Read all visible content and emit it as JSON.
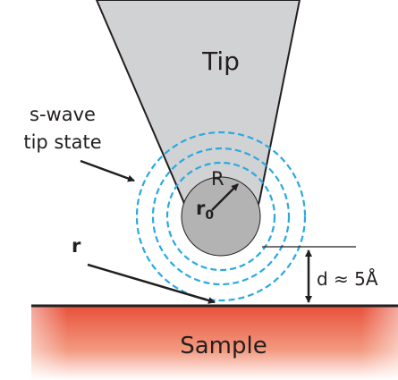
{
  "tip": {
    "label": "Tip"
  },
  "annotation": {
    "line1": "s-wave",
    "line2": "tip state"
  },
  "radius_label": "R",
  "center_label": {
    "base": "r",
    "subscript": "0"
  },
  "position_label": "r",
  "distance_label": "d ≈ 5Å",
  "sample": {
    "label": "Sample"
  }
}
